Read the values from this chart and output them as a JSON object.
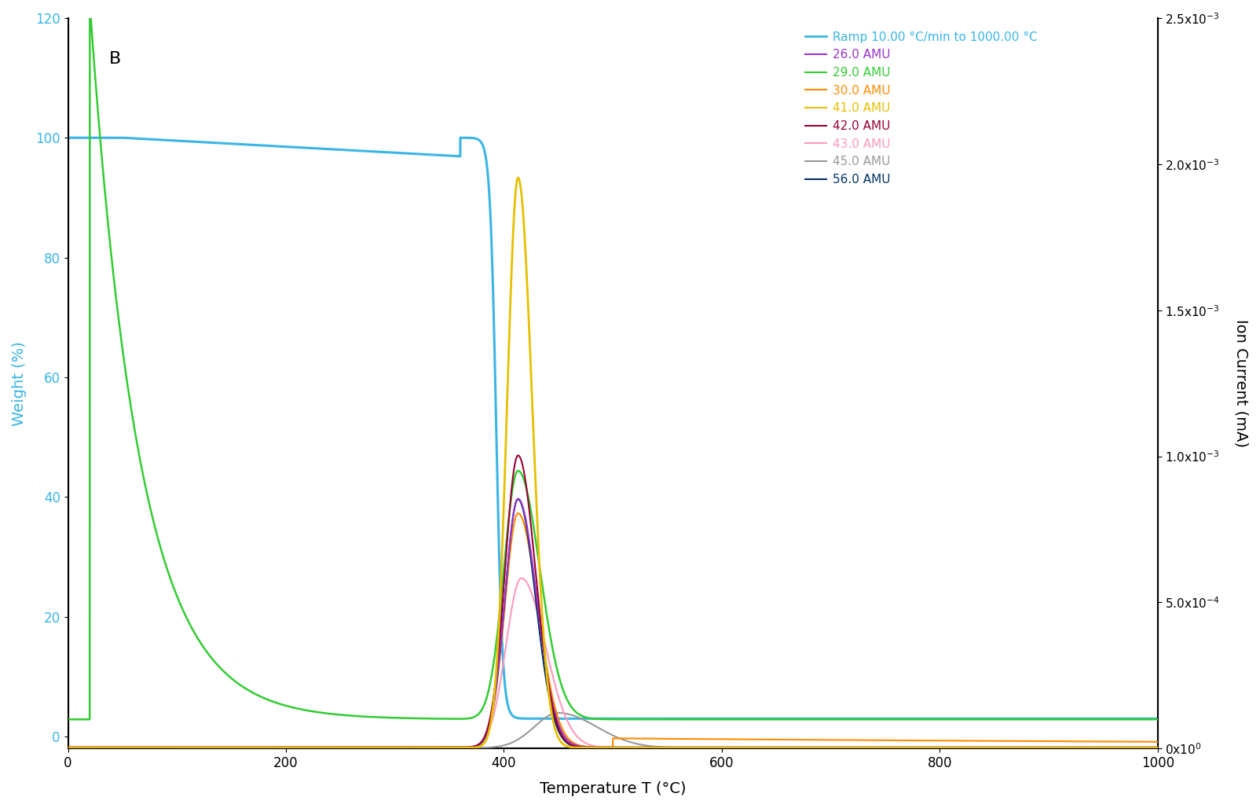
{
  "title": "B",
  "xlabel": "Temperature Τ (°C)",
  "ylabel_left": "Weight (%)",
  "ylabel_right": "Ion Current (mA)",
  "x_min": 0,
  "x_max": 1000,
  "y_left_min": -2,
  "y_left_max": 120,
  "y_right_min": 0,
  "y_right_max": 0.0025,
  "background_color": "#ffffff",
  "tga_color": "#3ab5e6",
  "legend_entries": [
    {
      "label": "Ramp 10.00 °C/min to 1000.00 °C",
      "color": "#3ab5e6"
    },
    {
      "label": "26.0 AMU",
      "color": "#9933cc"
    },
    {
      "label": "29.0 AMU",
      "color": "#33cc33"
    },
    {
      "label": "30.0 AMU",
      "color": "#ff8c00"
    },
    {
      "label": "41.0 AMU",
      "color": "#e6c000"
    },
    {
      "label": "42.0 AMU",
      "color": "#990033"
    },
    {
      "label": "43.0 AMU",
      "color": "#ff99bb"
    },
    {
      "label": "45.0 AMU",
      "color": "#999999"
    },
    {
      "label": "56.0 AMU",
      "color": "#003366"
    }
  ],
  "right_tick_vals": [
    0,
    0.0005,
    0.001,
    0.0015,
    0.002,
    0.0025
  ],
  "right_tick_labels": [
    "0x10⁰",
    "5.0x10⁻⁴",
    "1.0x10⁻³",
    "1.5x10⁻³",
    "2.0x10⁻³",
    "2.5x10⁻³"
  ]
}
